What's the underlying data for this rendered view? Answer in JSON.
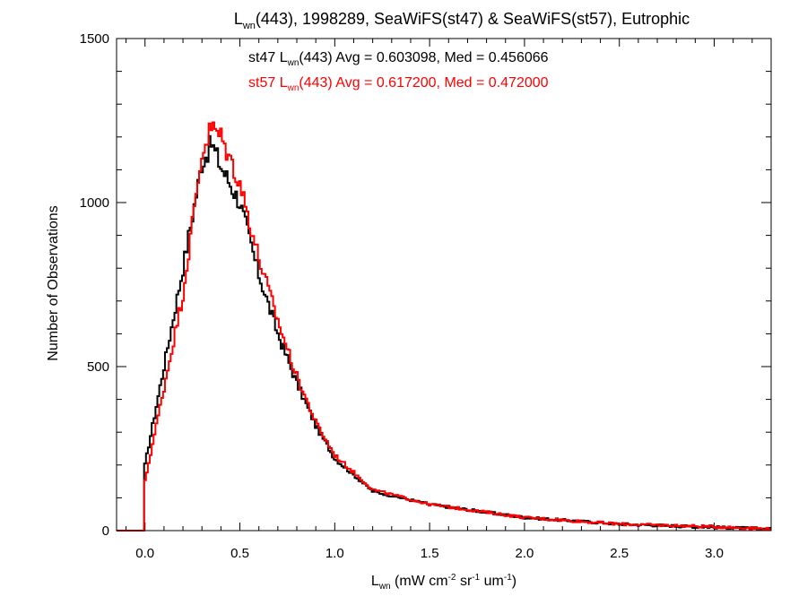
{
  "chart_data": {
    "type": "line",
    "title_parts": {
      "main": "L",
      "sub": "wn",
      "rest": "(443), 1998289, SeaWiFS(st47) & SeaWiFS(st57), Eutrophic"
    },
    "xlabel_parts": {
      "main": "L",
      "sub": "wn",
      "rest1": " (mW cm",
      "sup1": "-2",
      "rest2": " sr",
      "sup2": "-1",
      "rest3": " um",
      "sup3": "-1",
      "rest4": ")"
    },
    "ylabel": "Number of Observations",
    "xlim": [
      -0.15,
      3.3
    ],
    "ylim": [
      0,
      1500
    ],
    "xticks": [
      0.0,
      0.5,
      1.0,
      1.5,
      2.0,
      2.5,
      3.0
    ],
    "xtick_labels": [
      "0.0",
      "0.5",
      "1.0",
      "1.5",
      "2.0",
      "2.5",
      "3.0"
    ],
    "yticks": [
      0,
      500,
      1000,
      1500
    ],
    "ytick_labels": [
      "0",
      "500",
      "1000",
      "1500"
    ],
    "grid": false,
    "legend": [
      {
        "series": "st47",
        "color": "#000000",
        "pre": "st47 L",
        "sub": "wn",
        "post": "(443) Avg = 0.603098, Med = 0.456066"
      },
      {
        "series": "st57",
        "color": "#ff0000",
        "pre": "st57 L",
        "sub": "wn",
        "post": "(443) Avg = 0.617200, Med = 0.472000"
      }
    ],
    "x_step": 0.01,
    "series": [
      {
        "name": "st47",
        "color": "#000000",
        "x": [
          0.0,
          0.2,
          0.3,
          0.35,
          0.4,
          0.5,
          0.6,
          0.7,
          0.8,
          0.9,
          1.0,
          1.2,
          1.5,
          2.0,
          2.5,
          3.0,
          3.3
        ],
        "y": [
          200,
          800,
          1120,
          1180,
          1110,
          1000,
          780,
          600,
          450,
          320,
          220,
          120,
          80,
          40,
          20,
          10,
          5
        ]
      },
      {
        "name": "st57",
        "color": "#ff0000",
        "x": [
          0.0,
          0.2,
          0.3,
          0.35,
          0.4,
          0.5,
          0.6,
          0.7,
          0.8,
          0.9,
          1.0,
          1.2,
          1.5,
          2.0,
          2.5,
          3.0,
          3.3
        ],
        "y": [
          150,
          720,
          1150,
          1230,
          1200,
          1060,
          830,
          640,
          470,
          330,
          230,
          125,
          80,
          40,
          20,
          12,
          5
        ]
      }
    ]
  }
}
